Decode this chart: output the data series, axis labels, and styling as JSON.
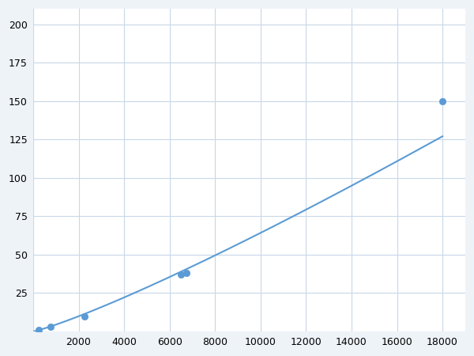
{
  "x_points": [
    250,
    750,
    2250,
    6500,
    6750,
    18000
  ],
  "y_points": [
    1,
    3,
    10,
    37,
    38,
    150
  ],
  "line_color": "#5b9bd5",
  "marker_color": "#5b9bd5",
  "marker_size": 6,
  "line_width": 1.5,
  "xlim": [
    0,
    19000
  ],
  "ylim": [
    0,
    210
  ],
  "xticks": [
    0,
    2000,
    4000,
    6000,
    8000,
    10000,
    12000,
    14000,
    16000,
    18000
  ],
  "yticks": [
    0,
    25,
    50,
    75,
    100,
    125,
    150,
    175,
    200
  ],
  "grid_color": "#c8d8e8",
  "background_color": "#ffffff",
  "figure_bg": "#eef3f8"
}
